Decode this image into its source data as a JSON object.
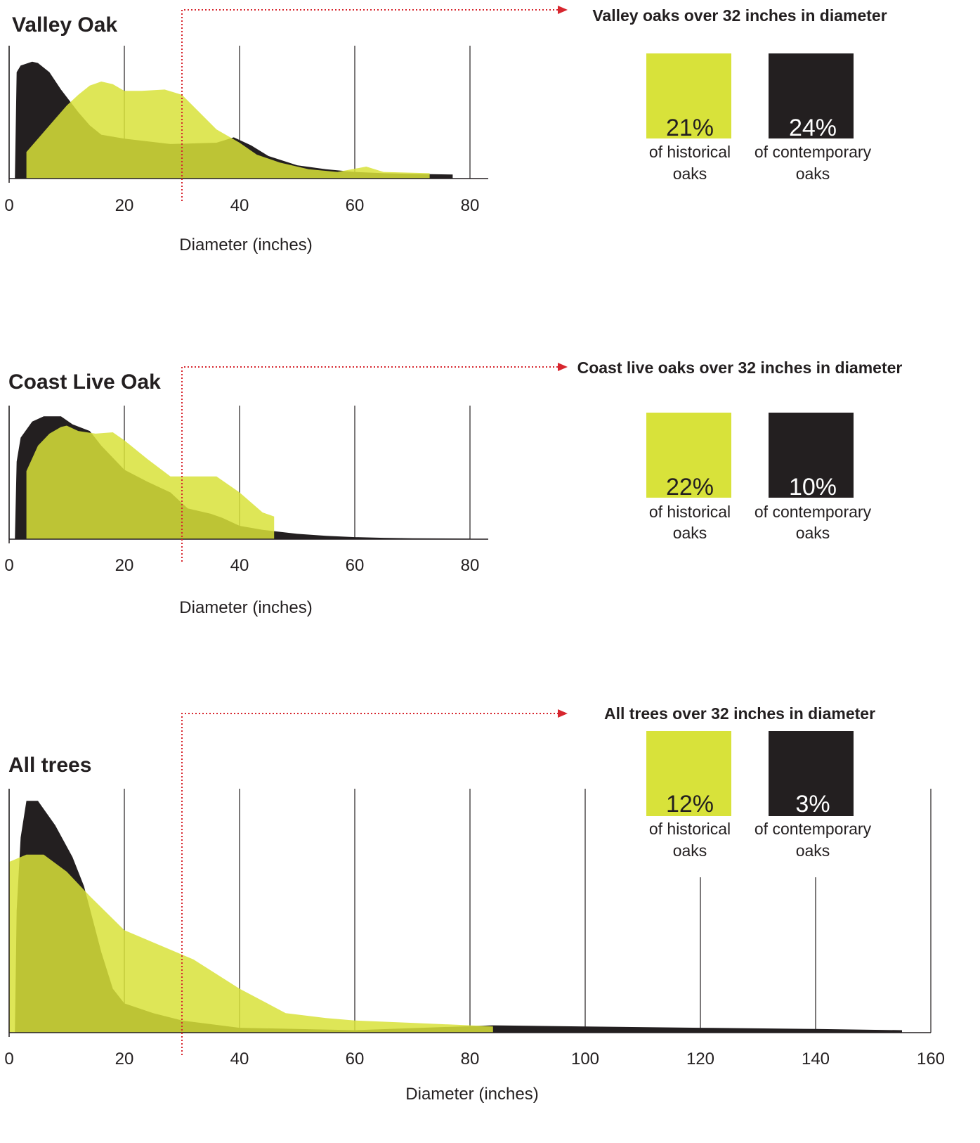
{
  "colors": {
    "historical": "#d8e23a",
    "contemporary": "#231f20",
    "annotation": "#d7262e",
    "grid": "#231f20"
  },
  "chart_data": [
    {
      "type": "area",
      "title": "Valley Oak",
      "xlabel": "Diameter (inches)",
      "xlim": [
        0,
        83
      ],
      "ylim": [
        0,
        1
      ],
      "xticks": [
        "0",
        "20",
        "40",
        "60",
        "80"
      ],
      "threshold": 30,
      "series": [
        {
          "role": "contemporary",
          "x": [
            1,
            1.3,
            2,
            4,
            5,
            7,
            9,
            12,
            14,
            16,
            20,
            28,
            36,
            39,
            42,
            45,
            50,
            55,
            60,
            65,
            70,
            77,
            77
          ],
          "y": [
            0,
            0.8,
            0.85,
            0.88,
            0.87,
            0.8,
            0.67,
            0.5,
            0.4,
            0.33,
            0.3,
            0.26,
            0.27,
            0.31,
            0.25,
            0.17,
            0.1,
            0.07,
            0.05,
            0.04,
            0.035,
            0.03,
            0
          ]
        },
        {
          "role": "historical",
          "x": [
            3,
            3,
            7,
            10,
            12,
            14,
            16,
            18,
            20,
            23,
            27,
            30,
            33,
            36,
            40,
            43,
            47,
            52,
            57,
            62,
            65,
            73,
            73
          ],
          "y": [
            0,
            0.2,
            0.4,
            0.55,
            0.63,
            0.7,
            0.73,
            0.71,
            0.66,
            0.66,
            0.67,
            0.63,
            0.5,
            0.37,
            0.27,
            0.18,
            0.12,
            0.07,
            0.05,
            0.09,
            0.05,
            0.04,
            0
          ]
        }
      ]
    },
    {
      "type": "area",
      "title": "Coast Live Oak",
      "xlabel": "Diameter (inches)",
      "xlim": [
        0,
        83
      ],
      "ylim": [
        0,
        1
      ],
      "xticks": [
        "0",
        "20",
        "40",
        "60",
        "80"
      ],
      "threshold": 30,
      "series": [
        {
          "role": "contemporary",
          "x": [
            1,
            1.3,
            2,
            4,
            6,
            9,
            11,
            14,
            16,
            20,
            24,
            28,
            31,
            35,
            37,
            40,
            44,
            46,
            50,
            55,
            60,
            65,
            70,
            80,
            80
          ],
          "y": [
            0,
            0.58,
            0.76,
            0.88,
            0.92,
            0.92,
            0.86,
            0.81,
            0.7,
            0.52,
            0.43,
            0.35,
            0.23,
            0.19,
            0.16,
            0.1,
            0.07,
            0.06,
            0.04,
            0.025,
            0.015,
            0.01,
            0.007,
            0.004,
            0
          ]
        },
        {
          "role": "historical",
          "x": [
            3,
            3,
            5,
            7,
            9,
            10,
            12,
            15,
            18,
            20,
            24,
            28,
            30,
            36,
            40,
            44,
            46,
            46
          ],
          "y": [
            0,
            0.51,
            0.7,
            0.79,
            0.84,
            0.85,
            0.81,
            0.79,
            0.8,
            0.74,
            0.6,
            0.47,
            0.47,
            0.47,
            0.35,
            0.2,
            0.17,
            0
          ]
        }
      ]
    },
    {
      "type": "area",
      "title": "All trees",
      "xlabel": "Diameter (inches)",
      "xlim": [
        0,
        160
      ],
      "ylim": [
        0,
        1
      ],
      "xticks": [
        "0",
        "20",
        "40",
        "60",
        "80",
        "100",
        "120",
        "140",
        "160"
      ],
      "threshold": 30,
      "series": [
        {
          "role": "contemporary",
          "x": [
            1,
            1.3,
            2,
            3,
            5,
            8,
            11,
            13,
            16,
            18,
            20,
            25,
            30,
            40,
            60,
            84,
            100,
            120,
            140,
            155,
            155
          ],
          "y": [
            0,
            0.5,
            0.8,
            0.95,
            0.95,
            0.85,
            0.72,
            0.6,
            0.33,
            0.18,
            0.12,
            0.08,
            0.05,
            0.02,
            0.01,
            0.03,
            0.025,
            0.02,
            0.015,
            0.01,
            0
          ]
        },
        {
          "role": "historical",
          "x": [
            0,
            0,
            3,
            6,
            10,
            14,
            20,
            25,
            32,
            40,
            48,
            55,
            60,
            70,
            80,
            84,
            84
          ],
          "y": [
            0,
            0.7,
            0.73,
            0.73,
            0.66,
            0.56,
            0.42,
            0.37,
            0.3,
            0.18,
            0.08,
            0.06,
            0.05,
            0.04,
            0.03,
            0.025,
            0
          ]
        }
      ]
    }
  ],
  "panels": [
    {
      "title": "Valley oaks over 32 inches in diameter",
      "historical": {
        "pct": "21%",
        "caption1": "of historical",
        "caption2": "oaks"
      },
      "contemporary": {
        "pct": "24%",
        "caption1": "of contemporary",
        "caption2": "oaks"
      }
    },
    {
      "title": "Coast live oaks over 32 inches in diameter",
      "historical": {
        "pct": "22%",
        "caption1": "of historical",
        "caption2": "oaks"
      },
      "contemporary": {
        "pct": "10%",
        "caption1": "of contemporary",
        "caption2": "oaks"
      }
    },
    {
      "title": "All trees over 32 inches in diameter",
      "historical": {
        "pct": "12%",
        "caption1": "of historical",
        "caption2": "oaks"
      },
      "contemporary": {
        "pct": "3%",
        "caption1": "of contemporary",
        "caption2": "oaks"
      }
    }
  ]
}
